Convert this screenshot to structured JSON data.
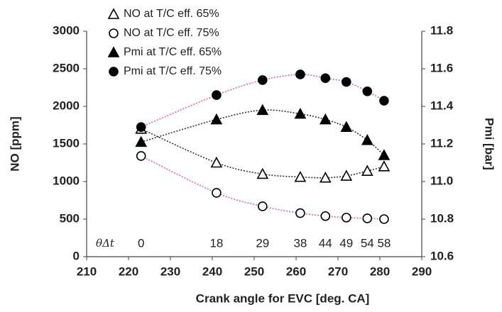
{
  "chart_data": {
    "type": "scatter",
    "x_label": "Crank angle for EVC [deg. CA]",
    "y_label": "NO [ppm]",
    "y2_label": "Pmi [bar]",
    "x": [
      223,
      241,
      252,
      261,
      267,
      272,
      277,
      281
    ],
    "xlim": [
      210,
      290
    ],
    "xticks": [
      210,
      220,
      230,
      240,
      250,
      260,
      270,
      280,
      290
    ],
    "ylim": [
      0,
      3000
    ],
    "yticks": [
      0,
      500,
      1000,
      1500,
      2000,
      2500,
      3000
    ],
    "y2lim": [
      10.6,
      11.8
    ],
    "y2ticks": [
      10.6,
      10.8,
      {
        "value": 11,
        "label": "11.0"
      },
      11.2,
      11.4,
      11.6,
      11.8
    ],
    "grid": false,
    "legend": "top-left",
    "series": [
      {
        "name": "NO at T/C eff. 65%",
        "marker": "triangle",
        "filled": false,
        "color": "#000000",
        "trend_color": "#333333",
        "values": [
          1700,
          1250,
          1100,
          1060,
          1050,
          1075,
          1140,
          1200
        ]
      },
      {
        "name": "NO at T/C eff. 75%",
        "marker": "circle",
        "filled": false,
        "color": "#000000",
        "trend_color": "#e8677f",
        "values": [
          1340,
          850,
          670,
          580,
          540,
          520,
          510,
          500
        ]
      },
      {
        "name": "Pmi at T/C eff. 65%",
        "marker": "triangle",
        "filled": true,
        "color": "#000000",
        "trend_color": "#333333",
        "axis": "y2",
        "values": [
          11.21,
          11.33,
          11.38,
          11.36,
          11.33,
          11.29,
          11.22,
          11.14
        ]
      },
      {
        "name": "Pmi at T/C eff. 75%",
        "marker": "circle",
        "filled": true,
        "color": "#000000",
        "trend_color": "#e8677f",
        "axis": "y2",
        "values": [
          11.29,
          11.46,
          11.54,
          11.57,
          11.55,
          11.53,
          11.48,
          11.43
        ]
      }
    ],
    "annotation_symbol": "θΔt",
    "annotation_values": [
      0,
      18,
      29,
      38,
      44,
      49,
      54,
      58
    ]
  }
}
